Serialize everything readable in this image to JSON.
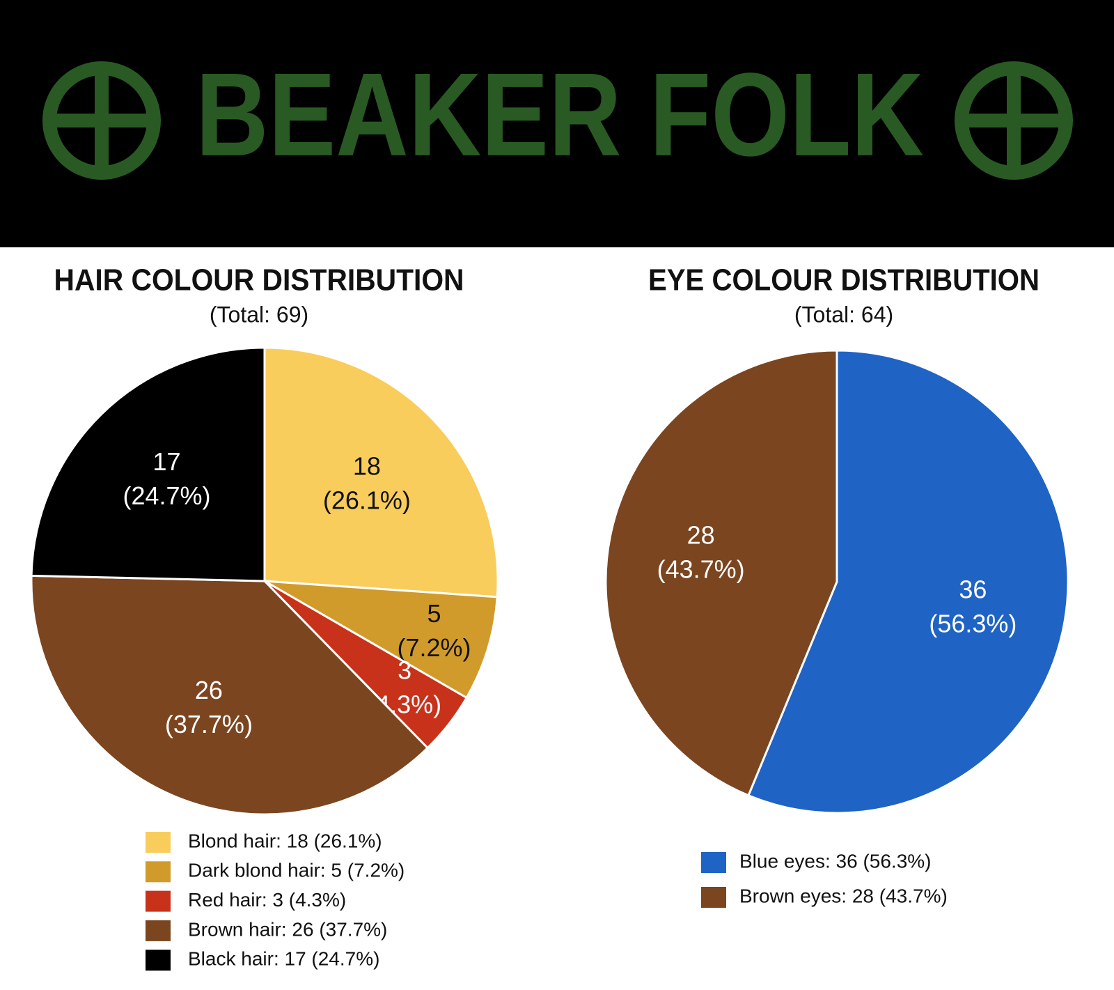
{
  "header": {
    "title": "BEAKER FOLK"
  },
  "chart_data": [
    {
      "type": "pie",
      "title": "HAIR COLOUR DISTRIBUTION",
      "subtitle": "(Total: 69)",
      "labels": [
        "Blond hair: 18 (26.1%)",
        "Dark blond hair: 5 (7.2%)",
        "Red hair: 3 (4.3%)",
        "Brown hair: 26 (37.7%)",
        "Black hair: 17 (24.7%)"
      ],
      "values": [
        18,
        5,
        3,
        26,
        17
      ],
      "percent_labels": [
        "(26.1%)",
        "(7.2%)",
        "(4.3%)",
        "(37.7%)",
        "(24.7%)"
      ],
      "colors": [
        "#f9cd5c",
        "#d19b2b",
        "#c8321a",
        "#7b4520",
        "#000000"
      ]
    },
    {
      "type": "pie",
      "title": "EYE COLOUR DISTRIBUTION",
      "subtitle": "(Total: 64)",
      "labels": [
        "Blue eyes: 36 (56.3%)",
        "Brown eyes: 28 (43.7%)"
      ],
      "values": [
        36,
        28
      ],
      "percent_labels": [
        "(56.3%)",
        "(43.7%)"
      ],
      "colors": [
        "#1f63c4",
        "#7b4520"
      ]
    }
  ]
}
